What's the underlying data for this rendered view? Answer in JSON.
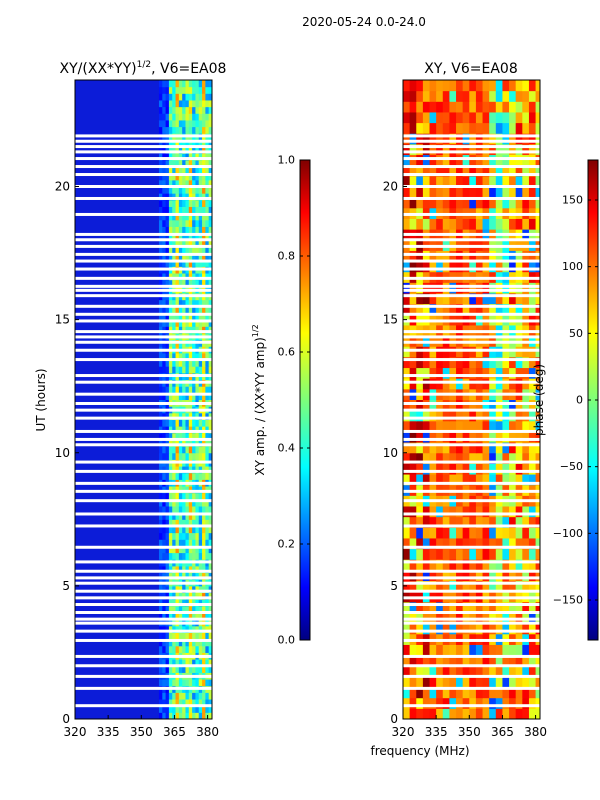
{
  "suptitle": "2020-05-24 0.0-24.0",
  "xlabel": "frequency (MHz)",
  "chart_data": [
    {
      "type": "heatmap",
      "title": "XY/(XX*YY)",
      "title_exponent": "1/2",
      "title_suffix": ", V6=EA08",
      "ylabel": "UT (hours)",
      "xlim": [
        320,
        382
      ],
      "ylim": [
        0,
        24
      ],
      "xticks": [
        "320",
        "335",
        "350",
        "365",
        "380"
      ],
      "yticks": [
        "0",
        "5",
        "10",
        "15",
        "20"
      ],
      "colorbar": {
        "label": "XY amp. / (XX*YY amp)",
        "label_exponent": "1/2",
        "range": [
          0.0,
          1.0
        ],
        "ticks": [
          "0.0",
          "0.2",
          "0.4",
          "0.6",
          "0.8",
          "1.0"
        ],
        "colormap": "jet"
      }
    },
    {
      "type": "heatmap",
      "title": "XY, V6=EA08",
      "ylabel": "",
      "xlim": [
        320,
        382
      ],
      "ylim": [
        0,
        24
      ],
      "xticks": [
        "320",
        "335",
        "350",
        "365",
        "380"
      ],
      "yticks": [
        "0",
        "5",
        "10",
        "15",
        "20"
      ],
      "colorbar": {
        "label": "phase (deg)",
        "range": [
          -180,
          180
        ],
        "ticks": [
          "−150",
          "−100",
          "−50",
          "0",
          "50",
          "100",
          "150"
        ],
        "colormap": "jet"
      }
    }
  ],
  "flagged_hours": [
    0.5,
    1.15,
    1.6,
    2.0,
    2.35,
    2.95,
    3.3,
    3.6,
    3.75,
    4.0,
    4.3,
    4.55,
    4.8,
    5.1,
    5.3,
    5.55,
    5.9,
    6.45,
    7.25,
    7.7,
    8.2,
    8.55,
    8.85,
    9.3,
    9.65,
    10.3,
    10.5,
    10.8,
    11.3,
    11.6,
    11.85,
    12.2,
    12.65,
    12.9,
    13.5,
    13.85,
    14.15,
    14.35,
    14.55,
    14.95,
    15.2,
    15.5,
    15.9,
    16.1,
    16.25,
    16.55,
    16.9,
    17.2,
    17.45,
    17.75,
    18.0,
    18.2,
    18.95,
    19.55,
    20.0,
    20.45,
    20.75,
    21.05,
    21.3,
    21.5,
    21.7,
    21.9
  ]
}
